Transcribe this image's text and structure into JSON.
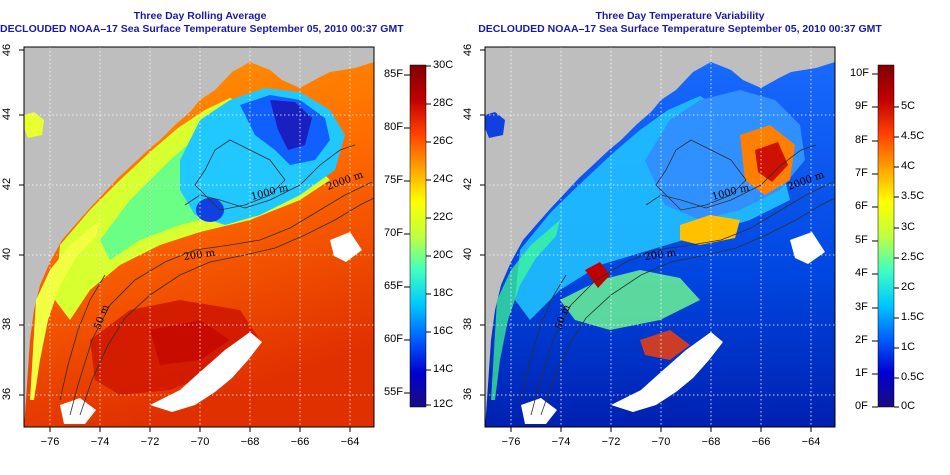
{
  "left_panel": {
    "title_line1": "Three Day Rolling Average",
    "title_line2": "DECLOUDED NOAA–17 Sea Surface Temperature September 05, 2010 00:37 GMT",
    "colorbar_f_labels": [
      "85F",
      "80F",
      "75F",
      "70F",
      "65F",
      "60F",
      "55F"
    ],
    "colorbar_c_labels": [
      "30C",
      "28C",
      "26C",
      "24C",
      "22C",
      "20C",
      "18C",
      "16C",
      "14C",
      "12C"
    ],
    "contour_labels": [
      "2000 m",
      "1000 m",
      "200 m",
      "50 m"
    ]
  },
  "right_panel": {
    "title_line1": "Three Day Temperature Variability",
    "title_line2": "DECLOUDED NOAA–17 Sea Surface Temperature September 05, 2010 00:37 GMT",
    "colorbar_f_labels": [
      "10F",
      "9F",
      "8F",
      "7F",
      "6F",
      "5F",
      "4F",
      "3F",
      "2F",
      "1F",
      "0F"
    ],
    "colorbar_c_labels": [
      "5C",
      "4.5C",
      "4C",
      "3.5C",
      "3C",
      "2.5C",
      "2C",
      "1.5C",
      "1C",
      "0.5C",
      "0C"
    ],
    "contour_labels": [
      "2000 m",
      "1000 m",
      "200 m",
      "50 m"
    ]
  },
  "axes": {
    "x_ticks": [
      "−76",
      "−74",
      "−72",
      "−70",
      "−68",
      "−66",
      "−64"
    ],
    "y_ticks": [
      "36",
      "38",
      "40",
      "42",
      "44",
      "46"
    ]
  },
  "colors": {
    "title": "#1a1aa8",
    "land": "#bebebe",
    "cloud": "#ffffff",
    "sst_scale": [
      "#1a0d80",
      "#0000d0",
      "#0060ff",
      "#00c8ff",
      "#40ffc0",
      "#c0ff40",
      "#ffff00",
      "#ffa000",
      "#ff4000",
      "#c00000",
      "#800000"
    ]
  }
}
